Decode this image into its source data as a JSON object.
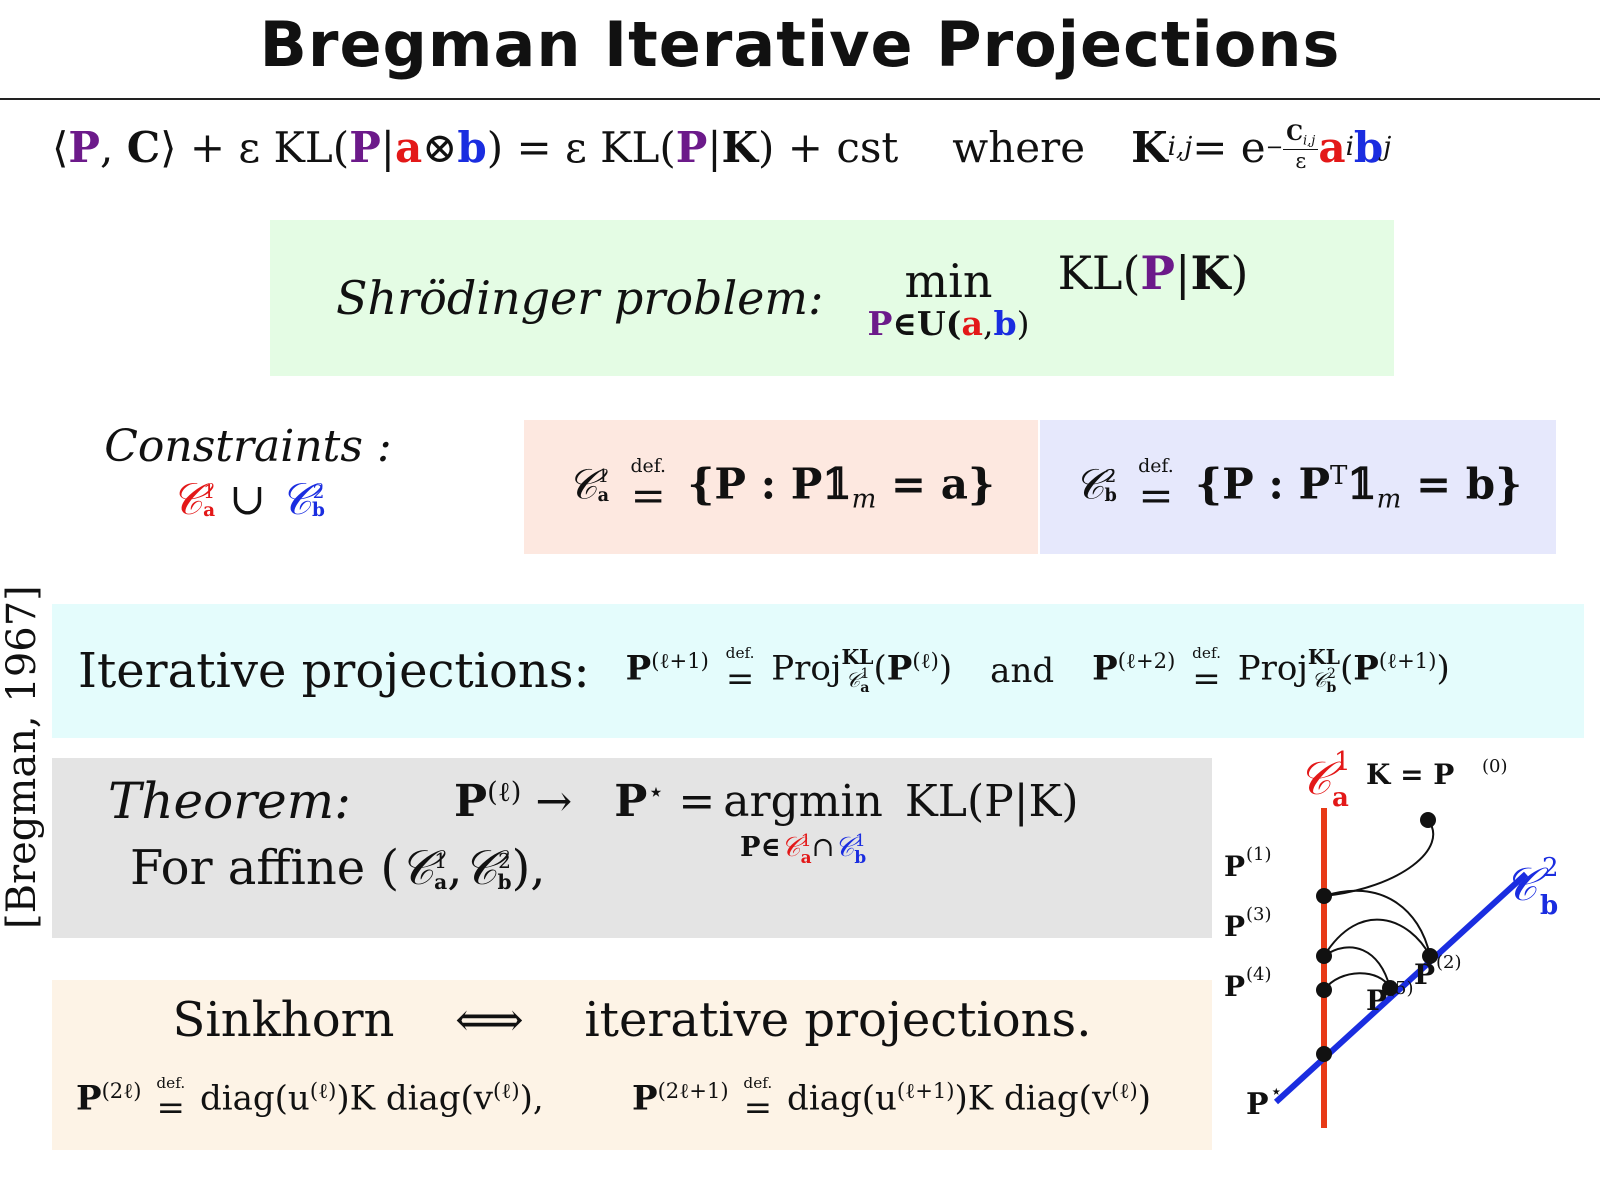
{
  "title": "Bregman Iterative Projections",
  "equation": {
    "lhs_open": "⟨",
    "P": "P",
    "comma": ",",
    "C": "C",
    "lhs_close": "⟩ + ε KL(",
    "bar": "|",
    "a": "a",
    "otimes": " ⊗ ",
    "b": "b",
    "mid": ") = ε KL(",
    "K": "K",
    "tail": ") + cst",
    "where": "where",
    "Kij": "K",
    "ij_sub": "i,j",
    "eq": " = e",
    "exp_num": "C",
    "exp_num_sub": "i,j",
    "exp_den": "ε",
    "ai": "a",
    "i": "i",
    "bj": "b",
    "j": "j"
  },
  "schrodinger": {
    "label": "Shrödinger problem:",
    "min": "min",
    "under_P": "P",
    "under_in": "∈U(",
    "under_a": "a",
    "under_comma": ",",
    "under_b": "b",
    "under_close": ")",
    "kl_open": "KL(",
    "P": "P",
    "bar": "|",
    "K": "K",
    "kl_close": ")"
  },
  "constraints": {
    "label": "Constraints :",
    "C": "𝒞",
    "sup1": "1",
    "sup2": "2",
    "sub_a": "a",
    "sub_b": "b",
    "union": " ∪ ",
    "set_a": "{P : P𝟙",
    "m": "m",
    "set_a_end": " = a}",
    "set_b": "{P : P",
    "T": "T",
    "set_b_mid": "𝟙",
    "set_b_end": " = b}",
    "defeq": "=",
    "def": "def."
  },
  "iterative": {
    "label": "Iterative projections:",
    "P": "P",
    "l1": "(ℓ+1)",
    "l2": "(ℓ+2)",
    "l": "(ℓ)",
    "proj": "Proj",
    "KL": "KL",
    "and": "and"
  },
  "theorem": {
    "label": "Theorem:",
    "arrow": " → ",
    "Pstar": "P",
    "star": "⋆",
    "eq": " = ",
    "argmin": "argmin",
    "kl": "KL(P|K)",
    "under": "P∈",
    "cap": "∩",
    "for_affine": "For affine (",
    "for_close": "),",
    "comma": ","
  },
  "sinkhorn": {
    "word": "Sinkhorn",
    "iff": "⟺",
    "rest": "iterative projections.",
    "f1_lhs": "(2ℓ)",
    "f1_rhs": " diag(u",
    "f1_mid": ")K diag(v",
    "f1_end": "),",
    "f2_lhs": "(2ℓ+1)",
    "f2_rhs": " diag(u",
    "f2_mid": ")K diag(v",
    "f2_end": ")",
    "ul": "(ℓ)",
    "ul1": "(ℓ+1)",
    "vl": "(ℓ)"
  },
  "side_citation": "[Bregman, 1967]",
  "diagram": {
    "Ca": "𝒞",
    "Cb": "𝒞",
    "sup1": "1",
    "sup2": "2",
    "a": "a",
    "b": "b",
    "K_label": "K = P",
    "K_sup": "(0)",
    "P1": "(1)",
    "P2": "(2)",
    "P3": "(3)",
    "P4": "(4)",
    "P5": "(5)",
    "P": "P",
    "star": "⋆"
  },
  "colors": {
    "purple": "#6c1a8a",
    "red": "#e31818",
    "blue": "#1a2de0",
    "green_box": "#e4fce4",
    "pink_box": "#fde8e0",
    "lavender_box": "#e6e8fc",
    "cyan_box": "#e4fcfc",
    "gray_box": "#e4e4e4",
    "peach_box": "#fdf3e6"
  }
}
